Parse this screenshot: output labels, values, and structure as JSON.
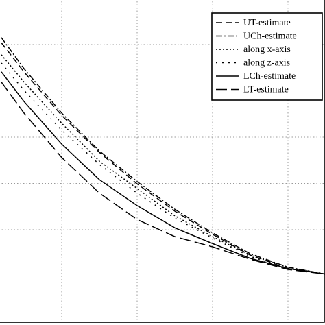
{
  "chart_data": {
    "type": "line",
    "x": [
      0.2,
      0.5,
      1,
      1.5,
      2,
      2.5,
      3,
      3.5,
      4,
      4.5
    ],
    "series": [
      {
        "name": "UT-estimate",
        "color": "#000000",
        "dash": "9 5",
        "values": [
          6.04,
          5.41,
          4.47,
          3.67,
          2.99,
          2.4,
          1.9,
          1.45,
          1.16,
          1.04
        ]
      },
      {
        "name": "UCh-estimate",
        "color": "#000000",
        "dash": "9 3 2 3",
        "values": [
          6.15,
          5.48,
          4.52,
          3.7,
          3.04,
          2.44,
          1.93,
          1.48,
          1.19,
          1.04
        ]
      },
      {
        "name": "along x-axis",
        "color": "#000000",
        "dash": "2 3",
        "values": [
          5.78,
          5.19,
          4.3,
          3.48,
          2.89,
          2.3,
          1.85,
          1.45,
          1.19,
          1.04
        ]
      },
      {
        "name": "along z-axis",
        "color": "#000000",
        "dash": "2 7",
        "values": [
          5.6,
          5.01,
          4.15,
          3.41,
          2.79,
          2.25,
          1.82,
          1.42,
          1.16,
          1.04
        ]
      },
      {
        "name": "LCh-estimate",
        "color": "#000000",
        "dash": "none",
        "values": [
          5.41,
          4.77,
          3.85,
          3.08,
          2.52,
          2.04,
          1.7,
          1.38,
          1.16,
          1.04
        ]
      },
      {
        "name": "LT-estimate",
        "color": "#000000",
        "dash": "16 6",
        "values": [
          5.19,
          4.52,
          3.56,
          2.79,
          2.22,
          1.85,
          1.63,
          1.36,
          1.14,
          1.04
        ]
      }
    ],
    "xlim": [
      0,
      4.5
    ],
    "xticks": [
      1,
      2,
      3,
      4
    ],
    "ylim": [
      0,
      7
    ],
    "yticks": [
      1,
      2,
      3,
      4,
      5,
      6
    ],
    "grid": true,
    "legend": "upper right"
  }
}
